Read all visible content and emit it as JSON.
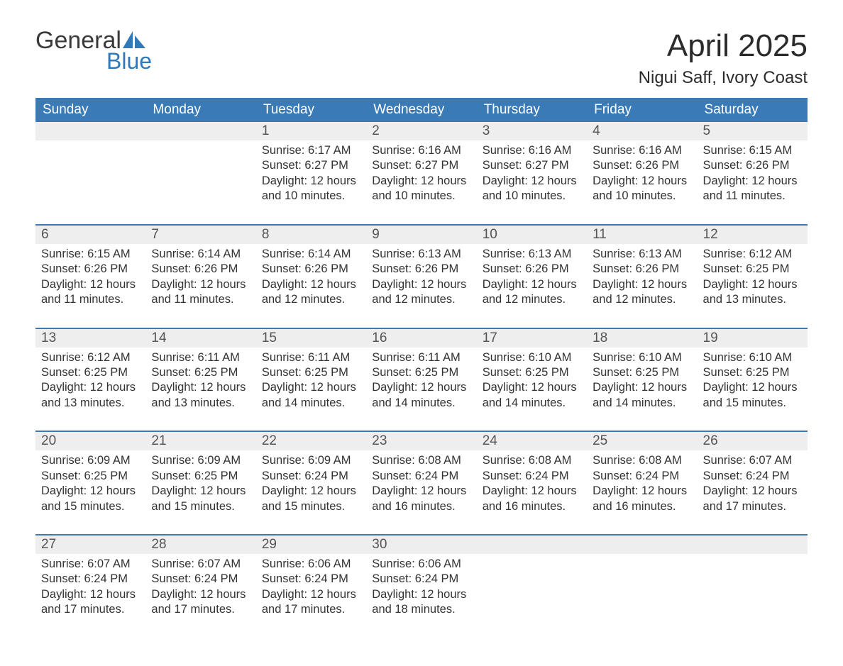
{
  "brand": {
    "word1": "General",
    "word2": "Blue",
    "accent_color": "#2f79b9"
  },
  "title": "April 2025",
  "location": "Nigui Saff, Ivory Coast",
  "colors": {
    "header_bg": "#3a7ab6",
    "header_fg": "#ffffff",
    "daynum_bg": "#eeeeee",
    "row_border": "#3a7ab6",
    "text": "#333333",
    "page_bg": "#ffffff"
  },
  "day_headers": [
    "Sunday",
    "Monday",
    "Tuesday",
    "Wednesday",
    "Thursday",
    "Friday",
    "Saturday"
  ],
  "label_sunrise": "Sunrise:",
  "label_sunset": "Sunset:",
  "label_daylight": "Daylight:",
  "weeks": [
    [
      null,
      null,
      {
        "n": "1",
        "sunrise": "6:17 AM",
        "sunset": "6:27 PM",
        "daylight": "12 hours and 10 minutes."
      },
      {
        "n": "2",
        "sunrise": "6:16 AM",
        "sunset": "6:27 PM",
        "daylight": "12 hours and 10 minutes."
      },
      {
        "n": "3",
        "sunrise": "6:16 AM",
        "sunset": "6:27 PM",
        "daylight": "12 hours and 10 minutes."
      },
      {
        "n": "4",
        "sunrise": "6:16 AM",
        "sunset": "6:26 PM",
        "daylight": "12 hours and 10 minutes."
      },
      {
        "n": "5",
        "sunrise": "6:15 AM",
        "sunset": "6:26 PM",
        "daylight": "12 hours and 11 minutes."
      }
    ],
    [
      {
        "n": "6",
        "sunrise": "6:15 AM",
        "sunset": "6:26 PM",
        "daylight": "12 hours and 11 minutes."
      },
      {
        "n": "7",
        "sunrise": "6:14 AM",
        "sunset": "6:26 PM",
        "daylight": "12 hours and 11 minutes."
      },
      {
        "n": "8",
        "sunrise": "6:14 AM",
        "sunset": "6:26 PM",
        "daylight": "12 hours and 12 minutes."
      },
      {
        "n": "9",
        "sunrise": "6:13 AM",
        "sunset": "6:26 PM",
        "daylight": "12 hours and 12 minutes."
      },
      {
        "n": "10",
        "sunrise": "6:13 AM",
        "sunset": "6:26 PM",
        "daylight": "12 hours and 12 minutes."
      },
      {
        "n": "11",
        "sunrise": "6:13 AM",
        "sunset": "6:26 PM",
        "daylight": "12 hours and 12 minutes."
      },
      {
        "n": "12",
        "sunrise": "6:12 AM",
        "sunset": "6:25 PM",
        "daylight": "12 hours and 13 minutes."
      }
    ],
    [
      {
        "n": "13",
        "sunrise": "6:12 AM",
        "sunset": "6:25 PM",
        "daylight": "12 hours and 13 minutes."
      },
      {
        "n": "14",
        "sunrise": "6:11 AM",
        "sunset": "6:25 PM",
        "daylight": "12 hours and 13 minutes."
      },
      {
        "n": "15",
        "sunrise": "6:11 AM",
        "sunset": "6:25 PM",
        "daylight": "12 hours and 14 minutes."
      },
      {
        "n": "16",
        "sunrise": "6:11 AM",
        "sunset": "6:25 PM",
        "daylight": "12 hours and 14 minutes."
      },
      {
        "n": "17",
        "sunrise": "6:10 AM",
        "sunset": "6:25 PM",
        "daylight": "12 hours and 14 minutes."
      },
      {
        "n": "18",
        "sunrise": "6:10 AM",
        "sunset": "6:25 PM",
        "daylight": "12 hours and 14 minutes."
      },
      {
        "n": "19",
        "sunrise": "6:10 AM",
        "sunset": "6:25 PM",
        "daylight": "12 hours and 15 minutes."
      }
    ],
    [
      {
        "n": "20",
        "sunrise": "6:09 AM",
        "sunset": "6:25 PM",
        "daylight": "12 hours and 15 minutes."
      },
      {
        "n": "21",
        "sunrise": "6:09 AM",
        "sunset": "6:25 PM",
        "daylight": "12 hours and 15 minutes."
      },
      {
        "n": "22",
        "sunrise": "6:09 AM",
        "sunset": "6:24 PM",
        "daylight": "12 hours and 15 minutes."
      },
      {
        "n": "23",
        "sunrise": "6:08 AM",
        "sunset": "6:24 PM",
        "daylight": "12 hours and 16 minutes."
      },
      {
        "n": "24",
        "sunrise": "6:08 AM",
        "sunset": "6:24 PM",
        "daylight": "12 hours and 16 minutes."
      },
      {
        "n": "25",
        "sunrise": "6:08 AM",
        "sunset": "6:24 PM",
        "daylight": "12 hours and 16 minutes."
      },
      {
        "n": "26",
        "sunrise": "6:07 AM",
        "sunset": "6:24 PM",
        "daylight": "12 hours and 17 minutes."
      }
    ],
    [
      {
        "n": "27",
        "sunrise": "6:07 AM",
        "sunset": "6:24 PM",
        "daylight": "12 hours and 17 minutes."
      },
      {
        "n": "28",
        "sunrise": "6:07 AM",
        "sunset": "6:24 PM",
        "daylight": "12 hours and 17 minutes."
      },
      {
        "n": "29",
        "sunrise": "6:06 AM",
        "sunset": "6:24 PM",
        "daylight": "12 hours and 17 minutes."
      },
      {
        "n": "30",
        "sunrise": "6:06 AM",
        "sunset": "6:24 PM",
        "daylight": "12 hours and 18 minutes."
      },
      null,
      null,
      null
    ]
  ]
}
